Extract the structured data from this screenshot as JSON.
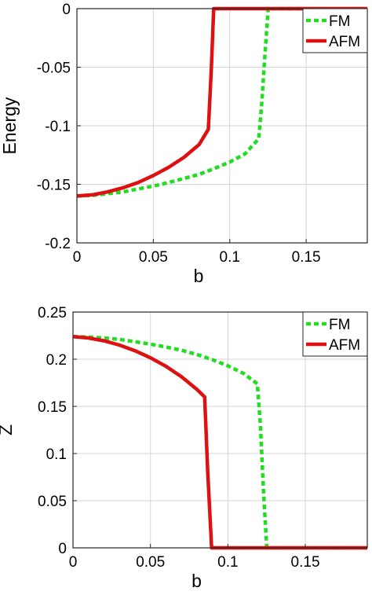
{
  "chart_data": [
    {
      "type": "line",
      "xlabel": "b",
      "ylabel": "Energy",
      "xlim": [
        0,
        0.19
      ],
      "ylim": [
        -0.2,
        0
      ],
      "grid": true,
      "legend_placement": "top-right",
      "xticks": [
        0,
        0.05,
        0.1,
        0.15
      ],
      "xtick_labels": [
        "0",
        "0.05",
        "0.1",
        "0.15"
      ],
      "yticks": [
        0,
        -0.05,
        -0.1,
        -0.15,
        -0.2
      ],
      "ytick_labels": [
        "0",
        "-0.05",
        "-0.1",
        "-0.15",
        "-0.2"
      ],
      "series": [
        {
          "name": "FM",
          "color": "#22dd22",
          "dash": "dotted",
          "x": [
            0,
            0.01,
            0.02,
            0.03,
            0.04,
            0.05,
            0.06,
            0.07,
            0.08,
            0.09,
            0.1,
            0.11,
            0.119,
            0.121,
            0.123,
            0.125,
            0.125,
            0.19
          ],
          "y": [
            -0.16,
            -0.1595,
            -0.158,
            -0.1565,
            -0.154,
            -0.1515,
            -0.1485,
            -0.145,
            -0.1415,
            -0.1365,
            -0.131,
            -0.124,
            -0.111,
            -0.08,
            -0.04,
            -0.003,
            0,
            0
          ]
        },
        {
          "name": "AFM",
          "color": "#dd1111",
          "dash": "solid",
          "x": [
            0,
            0.01,
            0.02,
            0.03,
            0.04,
            0.05,
            0.06,
            0.07,
            0.08,
            0.086,
            0.088,
            0.0895,
            0.19
          ],
          "y": [
            -0.16,
            -0.159,
            -0.1565,
            -0.153,
            -0.1485,
            -0.1425,
            -0.1355,
            -0.127,
            -0.116,
            -0.103,
            -0.05,
            0,
            0
          ]
        }
      ]
    },
    {
      "type": "line",
      "xlabel": "b",
      "ylabel": "Z",
      "xlim": [
        0,
        0.19
      ],
      "ylim": [
        0,
        0.25
      ],
      "grid": true,
      "legend_placement": "top-right",
      "xticks": [
        0,
        0.05,
        0.1,
        0.15
      ],
      "xtick_labels": [
        "0",
        "0.05",
        "0.1",
        "0.15"
      ],
      "yticks": [
        0,
        0.05,
        0.1,
        0.15,
        0.2,
        0.25
      ],
      "ytick_labels": [
        "0",
        "0.05",
        "0.1",
        "0.15",
        "0.2",
        "0.25"
      ],
      "series": [
        {
          "name": "FM",
          "color": "#22dd22",
          "dash": "dotted",
          "x": [
            0,
            0.01,
            0.02,
            0.03,
            0.04,
            0.05,
            0.06,
            0.07,
            0.08,
            0.09,
            0.1,
            0.11,
            0.119,
            0.121,
            0.123,
            0.125,
            0.125,
            0.19
          ],
          "y": [
            0.224,
            0.2235,
            0.2225,
            0.221,
            0.2185,
            0.216,
            0.213,
            0.2095,
            0.205,
            0.1995,
            0.193,
            0.185,
            0.174,
            0.13,
            0.06,
            0.003,
            0,
            0
          ]
        },
        {
          "name": "AFM",
          "color": "#dd1111",
          "dash": "solid",
          "x": [
            0,
            0.01,
            0.02,
            0.03,
            0.04,
            0.05,
            0.06,
            0.07,
            0.08,
            0.085,
            0.087,
            0.0895,
            0.19
          ],
          "y": [
            0.224,
            0.2225,
            0.2195,
            0.215,
            0.209,
            0.2015,
            0.1925,
            0.1815,
            0.168,
            0.16,
            0.08,
            0,
            0
          ]
        }
      ]
    }
  ]
}
